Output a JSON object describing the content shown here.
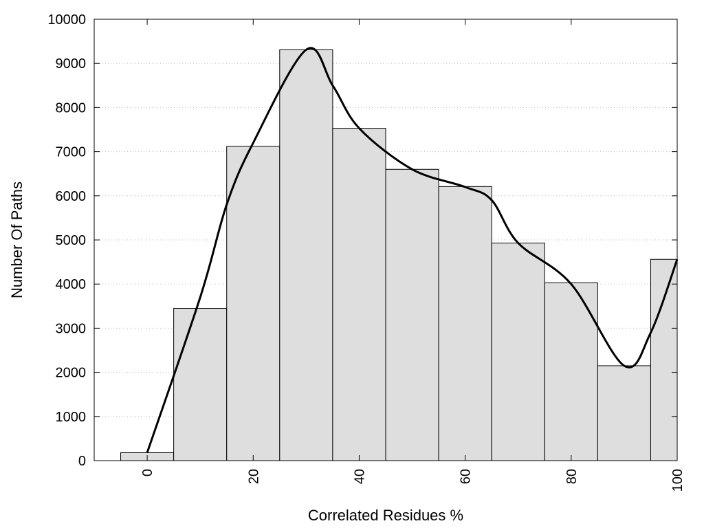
{
  "chart_data": {
    "type": "bar",
    "title": "",
    "xlabel": "Correlated Residues %",
    "ylabel": "Number Of Paths",
    "xlim": [
      -10,
      100
    ],
    "ylim": [
      0,
      10000
    ],
    "grid": {
      "y": true,
      "style": "dotted"
    },
    "legend": "none",
    "bin_width": 10,
    "x": [
      0,
      10,
      20,
      30,
      40,
      50,
      60,
      70,
      80,
      90,
      100
    ],
    "values": [
      180,
      3450,
      7120,
      9310,
      7530,
      6600,
      6210,
      4930,
      4030,
      2150,
      4560
    ],
    "x_ticks": [
      "0",
      "20",
      "40",
      "60",
      "80",
      "100"
    ],
    "y_ticks": [
      "0",
      "1000",
      "2000",
      "3000",
      "4000",
      "5000",
      "6000",
      "7000",
      "8000",
      "9000",
      "10000"
    ],
    "curve": {
      "type": "smooth-line",
      "x": [
        0,
        10,
        15,
        20,
        30,
        35,
        40,
        50,
        60,
        65,
        70,
        80,
        90,
        95,
        100
      ],
      "values": [
        180,
        3700,
        5800,
        7200,
        9310,
        8500,
        7530,
        6600,
        6200,
        5900,
        4930,
        4000,
        2150,
        2900,
        4560
      ]
    },
    "colors": {
      "bar_fill": "#dedede",
      "bar_stroke": "#000000",
      "curve": "#000000",
      "grid": "#bbbbbb"
    }
  }
}
